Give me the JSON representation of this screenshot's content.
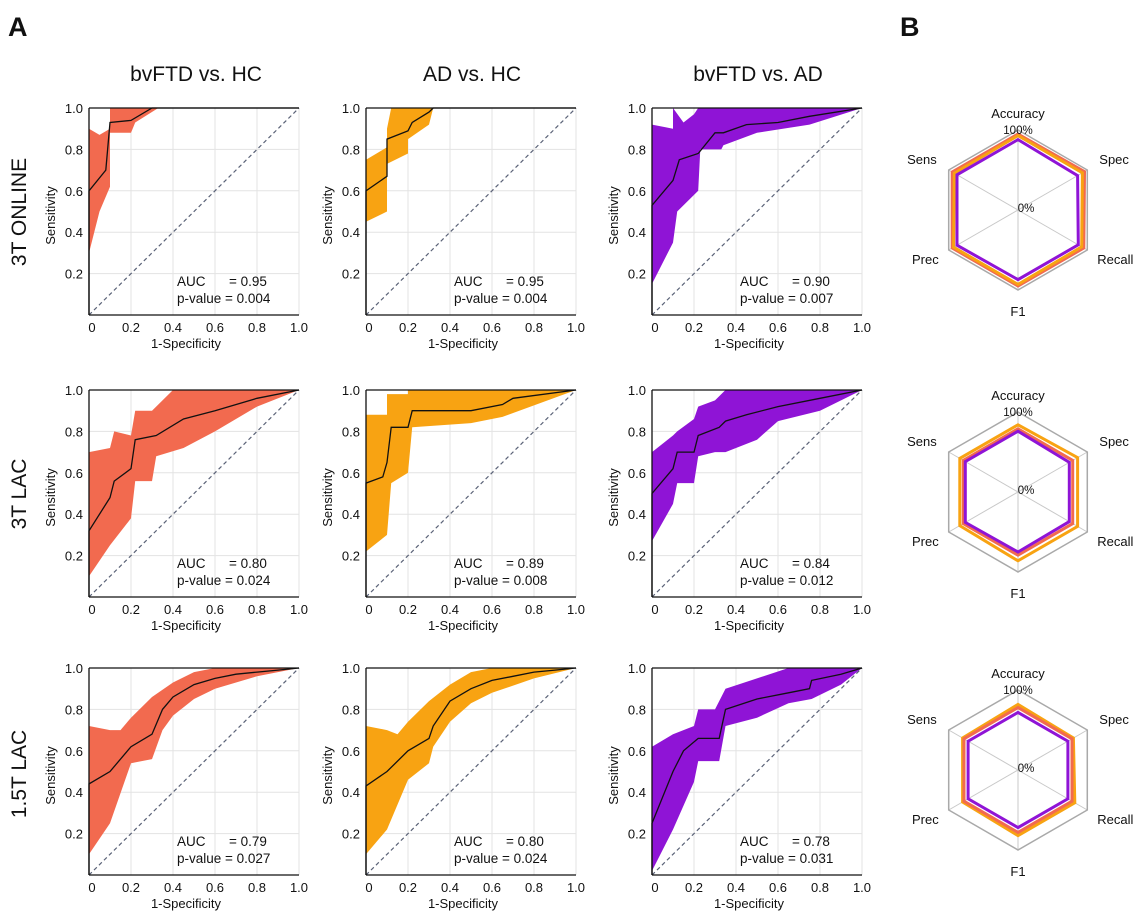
{
  "panel_labels": {
    "a": "A",
    "b": "B"
  },
  "column_titles": [
    "bvFTD vs. HC",
    "AD vs. HC",
    "bvFTD vs. AD"
  ],
  "row_labels": [
    "3T ONLINE",
    "3T LAC",
    "1.5T LAC"
  ],
  "colors": {
    "bvftd_hc": "#f26a4f",
    "ad_hc": "#f8a312",
    "bvftd_ad": "#8f14d6",
    "line": "#111111",
    "diagonal": "#5a6277",
    "grid": "#e3e3e3"
  },
  "auc_label": "AUC",
  "pvalue_label": "p-value",
  "radar": {
    "axes": [
      "Accuracy",
      "Spec",
      "Recall",
      "F1",
      "Prec",
      "Sens"
    ],
    "max_label": "100%",
    "min_label": "0%"
  },
  "chart_data": [
    {
      "type": "area",
      "row": "3T ONLINE",
      "column": "bvFTD vs. HC",
      "xlabel": "1-Specificity",
      "ylabel": "Sensitivity",
      "xlim": [
        0,
        1
      ],
      "ylim": [
        0,
        1
      ],
      "xticks": [
        "0",
        "0.2",
        "0.4",
        "0.6",
        "0.8",
        "1.0"
      ],
      "yticks": [
        "0.2",
        "0.4",
        "0.6",
        "0.8",
        "1.0"
      ],
      "auc": "0.95",
      "p_value": "0.004",
      "roc": {
        "x": [
          0,
          0,
          0.08,
          0.1,
          0.2,
          0.3,
          1
        ],
        "y": [
          0,
          0.6,
          0.7,
          0.93,
          0.94,
          1,
          1
        ]
      },
      "ci_upper": {
        "x": [
          0,
          0,
          0.05,
          0.1,
          0.1,
          1
        ],
        "y": [
          0,
          0.9,
          0.87,
          0.9,
          1,
          1
        ]
      },
      "ci_lower": {
        "x": [
          0,
          0,
          0.05,
          0.1,
          0.1,
          0.2,
          0.22,
          0.33,
          1
        ],
        "y": [
          0,
          0.3,
          0.5,
          0.62,
          0.88,
          0.88,
          0.93,
          1,
          1
        ]
      }
    },
    {
      "type": "area",
      "row": "3T ONLINE",
      "column": "AD vs. HC",
      "xlabel": "1-Specificity",
      "ylabel": "Sensitivity",
      "xlim": [
        0,
        1
      ],
      "ylim": [
        0,
        1
      ],
      "xticks": [
        "0",
        "0.2",
        "0.4",
        "0.6",
        "0.8",
        "1.0"
      ],
      "yticks": [
        "0.2",
        "0.4",
        "0.6",
        "0.8",
        "1.0"
      ],
      "auc": "0.95",
      "p_value": "0.004",
      "roc": {
        "x": [
          0,
          0,
          0.1,
          0.1,
          0.2,
          0.22,
          0.3,
          0.32,
          1
        ],
        "y": [
          0,
          0.6,
          0.67,
          0.85,
          0.89,
          0.93,
          0.98,
          1,
          1
        ]
      },
      "ci_upper": {
        "x": [
          0,
          0,
          0.1,
          0.1,
          0.12,
          0.2,
          0.2,
          1
        ],
        "y": [
          0,
          0.75,
          0.81,
          0.9,
          1,
          1,
          1,
          1
        ]
      },
      "ci_lower": {
        "x": [
          0,
          0,
          0.1,
          0.1,
          0.2,
          0.2,
          0.3,
          0.32,
          1
        ],
        "y": [
          0,
          0.45,
          0.5,
          0.73,
          0.78,
          0.85,
          0.92,
          1,
          1
        ]
      }
    },
    {
      "type": "area",
      "row": "3T ONLINE",
      "column": "bvFTD vs. AD",
      "xlabel": "1-Specificity",
      "ylabel": "Sensitivity",
      "xlim": [
        0,
        1
      ],
      "ylim": [
        0,
        1
      ],
      "xticks": [
        "0",
        "0.2",
        "0.4",
        "0.6",
        "0.8",
        "1.0"
      ],
      "yticks": [
        "0.2",
        "0.4",
        "0.6",
        "0.8",
        "1.0"
      ],
      "auc": "0.90",
      "p_value": "0.007",
      "roc": {
        "x": [
          0,
          0,
          0.1,
          0.13,
          0.22,
          0.3,
          0.34,
          0.45,
          0.6,
          0.75,
          1
        ],
        "y": [
          0,
          0.53,
          0.65,
          0.75,
          0.78,
          0.88,
          0.88,
          0.92,
          0.93,
          0.96,
          1
        ]
      },
      "ci_upper": {
        "x": [
          0,
          0,
          0.1,
          0.1,
          0.15,
          0.2,
          0.22,
          0.3,
          1
        ],
        "y": [
          0,
          0.92,
          0.9,
          1,
          0.93,
          0.97,
          1,
          1,
          1
        ]
      },
      "ci_lower": {
        "x": [
          0,
          0,
          0.1,
          0.12,
          0.22,
          0.23,
          0.33,
          0.34,
          0.5,
          0.75,
          1
        ],
        "y": [
          0,
          0.15,
          0.35,
          0.5,
          0.6,
          0.8,
          0.8,
          0.82,
          0.88,
          0.92,
          1
        ]
      }
    },
    {
      "type": "area",
      "row": "3T LAC",
      "column": "bvFTD vs. HC",
      "xlabel": "1-Specificity",
      "ylabel": "Sensitivity",
      "xlim": [
        0,
        1
      ],
      "ylim": [
        0,
        1
      ],
      "xticks": [
        "0",
        "0.2",
        "0.4",
        "0.6",
        "0.8",
        "1.0"
      ],
      "yticks": [
        "0.2",
        "0.4",
        "0.6",
        "0.8",
        "1.0"
      ],
      "auc": "0.80",
      "p_value": "0.024",
      "roc": {
        "x": [
          0,
          0,
          0.1,
          0.12,
          0.2,
          0.22,
          0.32,
          0.45,
          0.6,
          0.8,
          1
        ],
        "y": [
          0,
          0.32,
          0.48,
          0.56,
          0.62,
          0.76,
          0.78,
          0.86,
          0.9,
          0.96,
          1
        ]
      },
      "ci_upper": {
        "x": [
          0,
          0,
          0.1,
          0.12,
          0.2,
          0.22,
          0.3,
          0.4,
          0.6,
          1
        ],
        "y": [
          0,
          0.7,
          0.72,
          0.8,
          0.78,
          0.9,
          0.9,
          1,
          1,
          1
        ]
      },
      "ci_lower": {
        "x": [
          0,
          0,
          0.1,
          0.2,
          0.22,
          0.3,
          0.32,
          0.45,
          0.6,
          0.8,
          1
        ],
        "y": [
          0,
          0.1,
          0.25,
          0.38,
          0.56,
          0.56,
          0.68,
          0.72,
          0.8,
          0.92,
          1
        ]
      }
    },
    {
      "type": "area",
      "row": "3T LAC",
      "column": "AD vs. HC",
      "xlabel": "1-Specificity",
      "ylabel": "Sensitivity",
      "xlim": [
        0,
        1
      ],
      "ylim": [
        0,
        1
      ],
      "xticks": [
        "0",
        "0.2",
        "0.4",
        "0.6",
        "0.8",
        "1.0"
      ],
      "yticks": [
        "0.2",
        "0.4",
        "0.6",
        "0.8",
        "1.0"
      ],
      "auc": "0.89",
      "p_value": "0.008",
      "roc": {
        "x": [
          0,
          0,
          0.08,
          0.1,
          0.12,
          0.2,
          0.22,
          0.5,
          0.65,
          0.7,
          1
        ],
        "y": [
          0,
          0.55,
          0.58,
          0.65,
          0.82,
          0.82,
          0.9,
          0.9,
          0.93,
          0.96,
          1
        ]
      },
      "ci_upper": {
        "x": [
          0,
          0,
          0.1,
          0.1,
          0.2,
          0.2,
          0.3,
          0.5,
          1
        ],
        "y": [
          0,
          0.88,
          0.88,
          0.98,
          0.98,
          1,
          1,
          1,
          1
        ]
      },
      "ci_lower": {
        "x": [
          0,
          0,
          0.1,
          0.12,
          0.2,
          0.22,
          0.5,
          0.65,
          1
        ],
        "y": [
          0,
          0.22,
          0.3,
          0.55,
          0.6,
          0.82,
          0.84,
          0.87,
          1
        ]
      }
    },
    {
      "type": "area",
      "row": "3T LAC",
      "column": "bvFTD vs. AD",
      "xlabel": "1-Specificity",
      "ylabel": "Sensitivity",
      "xlim": [
        0,
        1
      ],
      "ylim": [
        0,
        1
      ],
      "xticks": [
        "0",
        "0.2",
        "0.4",
        "0.6",
        "0.8",
        "1.0"
      ],
      "yticks": [
        "0.2",
        "0.4",
        "0.6",
        "0.8",
        "1.0"
      ],
      "auc": "0.84",
      "p_value": "0.012",
      "roc": {
        "x": [
          0,
          0,
          0.1,
          0.12,
          0.2,
          0.22,
          0.32,
          0.35,
          0.45,
          0.6,
          0.8,
          1
        ],
        "y": [
          0,
          0.5,
          0.62,
          0.7,
          0.7,
          0.78,
          0.82,
          0.85,
          0.88,
          0.92,
          0.96,
          1
        ]
      },
      "ci_upper": {
        "x": [
          0,
          0,
          0.1,
          0.12,
          0.2,
          0.22,
          0.3,
          0.35,
          0.5,
          1
        ],
        "y": [
          0,
          0.7,
          0.78,
          0.8,
          0.86,
          0.92,
          0.95,
          1,
          1,
          1
        ]
      },
      "ci_lower": {
        "x": [
          0,
          0,
          0.1,
          0.12,
          0.2,
          0.22,
          0.3,
          0.35,
          0.5,
          0.6,
          0.8,
          1
        ],
        "y": [
          0,
          0.27,
          0.45,
          0.55,
          0.55,
          0.68,
          0.7,
          0.7,
          0.76,
          0.85,
          0.9,
          1
        ]
      }
    },
    {
      "type": "area",
      "row": "1.5T LAC",
      "column": "bvFTD vs. HC",
      "xlabel": "1-Specificity",
      "ylabel": "Sensitivity",
      "xlim": [
        0,
        1
      ],
      "ylim": [
        0,
        1
      ],
      "xticks": [
        "0",
        "0.2",
        "0.4",
        "0.6",
        "0.8",
        "1.0"
      ],
      "yticks": [
        "0.2",
        "0.4",
        "0.6",
        "0.8",
        "1.0"
      ],
      "auc": "0.79",
      "p_value": "0.027",
      "roc": {
        "x": [
          0,
          0,
          0.1,
          0.2,
          0.3,
          0.35,
          0.4,
          0.5,
          0.6,
          0.7,
          0.8,
          0.9,
          1
        ],
        "y": [
          0,
          0.44,
          0.5,
          0.62,
          0.68,
          0.8,
          0.86,
          0.92,
          0.95,
          0.97,
          0.98,
          0.99,
          1
        ]
      },
      "ci_upper": {
        "x": [
          0,
          0,
          0.1,
          0.15,
          0.2,
          0.3,
          0.4,
          0.5,
          0.6,
          1
        ],
        "y": [
          0,
          0.72,
          0.7,
          0.7,
          0.76,
          0.86,
          0.93,
          0.98,
          1,
          1
        ]
      },
      "ci_lower": {
        "x": [
          0,
          0,
          0.1,
          0.2,
          0.3,
          0.35,
          0.4,
          0.5,
          0.6,
          0.8,
          1
        ],
        "y": [
          0,
          0.1,
          0.25,
          0.54,
          0.56,
          0.7,
          0.77,
          0.85,
          0.9,
          0.96,
          1
        ]
      }
    },
    {
      "type": "area",
      "row": "1.5T LAC",
      "column": "AD vs. HC",
      "xlabel": "1-Specificity",
      "ylabel": "Sensitivity",
      "xlim": [
        0,
        1
      ],
      "ylim": [
        0,
        1
      ],
      "xticks": [
        "0",
        "0.2",
        "0.4",
        "0.6",
        "0.8",
        "1.0"
      ],
      "yticks": [
        "0.2",
        "0.4",
        "0.6",
        "0.8",
        "1.0"
      ],
      "auc": "0.80",
      "p_value": "0.024",
      "roc": {
        "x": [
          0,
          0,
          0.1,
          0.2,
          0.3,
          0.32,
          0.4,
          0.5,
          0.6,
          0.7,
          0.8,
          0.9,
          1
        ],
        "y": [
          0,
          0.43,
          0.5,
          0.6,
          0.66,
          0.72,
          0.84,
          0.9,
          0.94,
          0.96,
          0.98,
          0.99,
          1
        ]
      },
      "ci_upper": {
        "x": [
          0,
          0,
          0.1,
          0.15,
          0.2,
          0.3,
          0.4,
          0.5,
          0.6,
          1
        ],
        "y": [
          0,
          0.72,
          0.7,
          0.68,
          0.74,
          0.84,
          0.92,
          0.98,
          1,
          1
        ]
      },
      "ci_lower": {
        "x": [
          0,
          0,
          0.1,
          0.2,
          0.3,
          0.32,
          0.4,
          0.5,
          0.6,
          0.8,
          1
        ],
        "y": [
          0,
          0.1,
          0.22,
          0.46,
          0.54,
          0.62,
          0.74,
          0.83,
          0.88,
          0.95,
          1
        ]
      }
    },
    {
      "type": "area",
      "row": "1.5T LAC",
      "column": "bvFTD vs. AD",
      "xlabel": "1-Specificity",
      "ylabel": "Sensitivity",
      "xlim": [
        0,
        1
      ],
      "ylim": [
        0,
        1
      ],
      "xticks": [
        "0",
        "0.2",
        "0.4",
        "0.6",
        "0.8",
        "1.0"
      ],
      "yticks": [
        "0.2",
        "0.4",
        "0.6",
        "0.8",
        "1.0"
      ],
      "auc": "0.78",
      "p_value": "0.031",
      "roc": {
        "x": [
          0,
          0,
          0.1,
          0.15,
          0.22,
          0.32,
          0.35,
          0.5,
          0.65,
          0.75,
          0.76,
          0.9,
          1
        ],
        "y": [
          0,
          0.25,
          0.5,
          0.6,
          0.66,
          0.66,
          0.8,
          0.85,
          0.88,
          0.9,
          0.94,
          0.97,
          1
        ]
      },
      "ci_upper": {
        "x": [
          0,
          0,
          0.1,
          0.2,
          0.22,
          0.3,
          0.35,
          0.5,
          0.65,
          0.8,
          1
        ],
        "y": [
          0,
          0.62,
          0.68,
          0.72,
          0.8,
          0.8,
          0.9,
          0.95,
          1,
          1,
          1
        ]
      },
      "ci_lower": {
        "x": [
          0,
          0,
          0.1,
          0.2,
          0.22,
          0.32,
          0.35,
          0.5,
          0.65,
          0.76,
          0.9,
          1
        ],
        "y": [
          0,
          0.02,
          0.22,
          0.45,
          0.55,
          0.55,
          0.72,
          0.76,
          0.83,
          0.85,
          0.92,
          1
        ]
      }
    }
  ],
  "radar_data": [
    {
      "type": "radar",
      "row": "3T ONLINE",
      "axes": [
        "Accuracy",
        "Spec",
        "Recall",
        "F1",
        "Prec",
        "Sens"
      ],
      "series": [
        {
          "color_key": "bvftd_hc",
          "values": [
            0.95,
            0.96,
            0.95,
            0.95,
            0.95,
            0.95
          ]
        },
        {
          "color_key": "ad_hc",
          "values": [
            0.93,
            0.93,
            0.92,
            0.93,
            0.93,
            0.92
          ]
        },
        {
          "color_key": "bvftd_ad",
          "values": [
            0.88,
            0.86,
            0.87,
            0.87,
            0.88,
            0.88
          ]
        }
      ]
    },
    {
      "type": "radar",
      "row": "3T LAC",
      "axes": [
        "Accuracy",
        "Spec",
        "Recall",
        "F1",
        "Prec",
        "Sens"
      ],
      "series": [
        {
          "color_key": "ad_hc",
          "values": [
            0.84,
            0.86,
            0.86,
            0.86,
            0.84,
            0.84
          ]
        },
        {
          "color_key": "bvftd_hc",
          "values": [
            0.79,
            0.79,
            0.79,
            0.79,
            0.79,
            0.79
          ]
        },
        {
          "color_key": "bvftd_ad",
          "values": [
            0.76,
            0.74,
            0.74,
            0.75,
            0.76,
            0.76
          ]
        }
      ]
    },
    {
      "type": "radar",
      "row": "1.5T LAC",
      "axes": [
        "Accuracy",
        "Spec",
        "Recall",
        "F1",
        "Prec",
        "Sens"
      ],
      "series": [
        {
          "color_key": "ad_hc",
          "values": [
            0.82,
            0.8,
            0.82,
            0.82,
            0.8,
            0.8
          ]
        },
        {
          "color_key": "bvftd_hc",
          "values": [
            0.78,
            0.78,
            0.78,
            0.78,
            0.78,
            0.78
          ]
        },
        {
          "color_key": "bvftd_ad",
          "values": [
            0.72,
            0.72,
            0.72,
            0.72,
            0.72,
            0.72
          ]
        }
      ]
    }
  ]
}
